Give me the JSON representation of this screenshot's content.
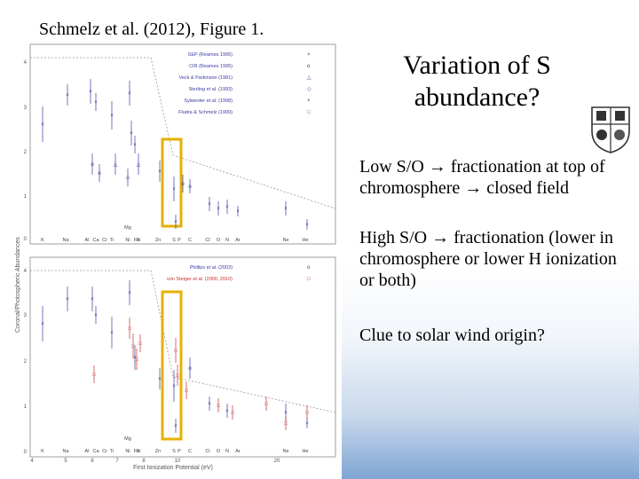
{
  "caption": "Schmelz et al. (2012), Figure 1.",
  "title": "Variation of S abundance?",
  "bullets": [
    {
      "parts": [
        "Low S/O ",
        " fractionation at top of chromosphere ",
        " closed field"
      ]
    },
    {
      "parts": [
        "High S/O ",
        " fractionation (lower in chromosphere or lower H ionization or both)"
      ]
    },
    {
      "parts": [
        "Clue to solar wind origin?"
      ]
    }
  ],
  "arrow_symbol": "→",
  "figure": {
    "ylabel": "Coronal/Photospheric Abundances",
    "xlabel": "First Ionization Potential (eV)",
    "top_legend": [
      "SEP (Reames 1995)",
      "CIR (Reames 1995)",
      "Veck & Parkinson (1981)",
      "Sterling et al. (1993)",
      "Sylwester et al. (1998)",
      "Fludra & Schmelz (1999)"
    ],
    "bottom_legend": [
      "Phillips et al. (2003)",
      "von Steiger et al. (2000, 2010)"
    ],
    "top_legend_colors": [
      "#3a3aa0",
      "#3a3aa0",
      "#3a3aa0",
      "#3a3aa0",
      "#3a3aa0",
      "#3a3aa0"
    ],
    "bottom_legend_colors": [
      "#3a3aa0",
      "#c03030"
    ],
    "element_labels": [
      "K",
      "Na",
      "Al",
      "Ca",
      "Cr",
      "Ti",
      "Ni",
      "Fe",
      "Si",
      "Mg",
      "Zn",
      "S",
      "P",
      "C",
      "Cl",
      "O",
      "N",
      "Ar",
      "Ne",
      "He"
    ],
    "x_ticks": [
      "4",
      "5",
      "6",
      "7",
      "8",
      "10",
      "20"
    ],
    "top_y_ticks": [
      "0",
      "1",
      "2",
      "3",
      "4"
    ],
    "bottom_y_ticks": [
      "0",
      "1",
      "2",
      "3",
      "4"
    ],
    "highlight_color": "#e8b000",
    "blue": "#3a3aa0",
    "red": "#c03030"
  }
}
